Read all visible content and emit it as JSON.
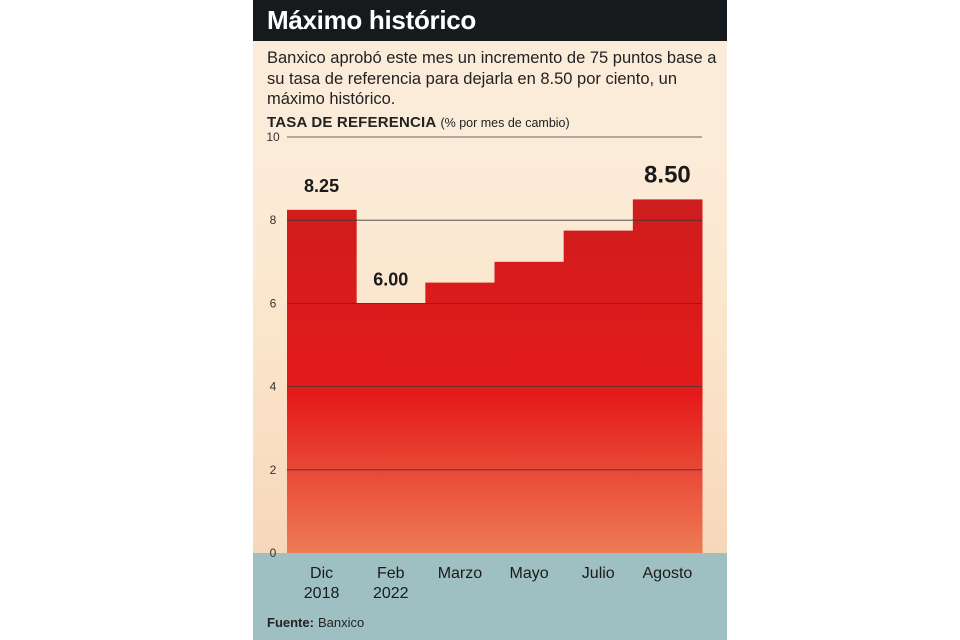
{
  "header": {
    "title": "Máximo histórico",
    "subtitle": "Banxico aprobó este mes un incremento de 75 puntos base a su tasa de referencia para dejarla en 8.50 por ciento, un máximo histórico.",
    "axis_title": "TASA DE REFERENCIA",
    "axis_unit": "(% por mes de cambio)"
  },
  "chart_data": {
    "type": "bar",
    "title": "TASA DE REFERENCIA",
    "ylabel": "% por mes de cambio",
    "xlabel": "",
    "categories": [
      [
        "Dic",
        "2018"
      ],
      [
        "Feb",
        "2022"
      ],
      [
        "Marzo"
      ],
      [
        "Mayo"
      ],
      [
        "Julio"
      ],
      [
        "Agosto"
      ]
    ],
    "values": [
      8.25,
      6.0,
      6.5,
      7.0,
      7.75,
      8.5
    ],
    "data_labels": [
      "8.25",
      "6.00",
      "",
      "",
      "",
      "8.50"
    ],
    "ylim": [
      0,
      10
    ],
    "yticks": [
      "0",
      "2",
      "4",
      "6",
      "8",
      "10"
    ],
    "grid": true
  },
  "footer": {
    "source_label": "Fuente:",
    "source_value": "Banxico"
  },
  "colors": {
    "title_bar": "#161a1d",
    "panel_background": "#fbecd9",
    "bar_top": "#cf1d1d",
    "bar_mid": "#e41a1a",
    "bar_bottom": "#ee7b56",
    "category_band": "#9fc0c3",
    "gridline": "#3a3a3a"
  }
}
